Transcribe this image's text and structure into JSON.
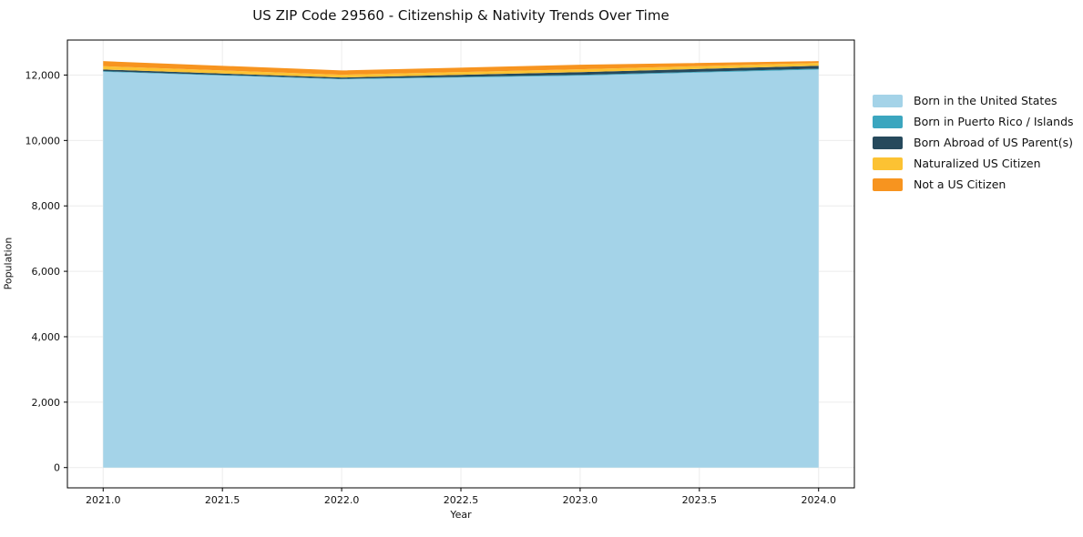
{
  "chart_data": {
    "type": "area",
    "stacked": true,
    "title": "US ZIP Code 29560 - Citizenship & Nativity Trends Over Time",
    "xlabel": "Year",
    "ylabel": "Population",
    "x": [
      2021,
      2022,
      2023,
      2024
    ],
    "series": [
      {
        "name": "Born in the United States",
        "color": "#a4d3e8",
        "values": [
          12100,
          11870,
          11980,
          12170
        ]
      },
      {
        "name": "Born in Puerto Rico / Islands",
        "color": "#3ba6bf",
        "values": [
          20,
          15,
          25,
          25
        ]
      },
      {
        "name": "Born Abroad of US Parent(s)",
        "color": "#26495c",
        "values": [
          50,
          40,
          85,
          90
        ]
      },
      {
        "name": "Naturalized US Citizen",
        "color": "#fcc233",
        "values": [
          100,
          85,
          85,
          85
        ]
      },
      {
        "name": "Not a US Citizen",
        "color": "#f7941f",
        "values": [
          155,
          130,
          140,
          55
        ]
      }
    ],
    "axes": {
      "xlim": [
        2020.85,
        2024.15
      ],
      "ylim": [
        -620,
        13070
      ],
      "xticks": [
        2021.0,
        2021.5,
        2022.0,
        2022.5,
        2023.0,
        2023.5,
        2024.0
      ],
      "xtick_labels": [
        "2021.0",
        "2021.5",
        "2022.0",
        "2022.5",
        "2023.0",
        "2023.5",
        "2024.0"
      ],
      "yticks": [
        0,
        2000,
        4000,
        6000,
        8000,
        10000,
        12000
      ],
      "ytick_labels": [
        "0",
        "2,000",
        "4,000",
        "6,000",
        "8,000",
        "10,000",
        "12,000"
      ],
      "grid": true,
      "legend_position": "right"
    },
    "style": {
      "grid_color": "#ececec",
      "spine_color": "#000000",
      "text_color": "#111111",
      "plot_bg": "#ffffff"
    }
  }
}
